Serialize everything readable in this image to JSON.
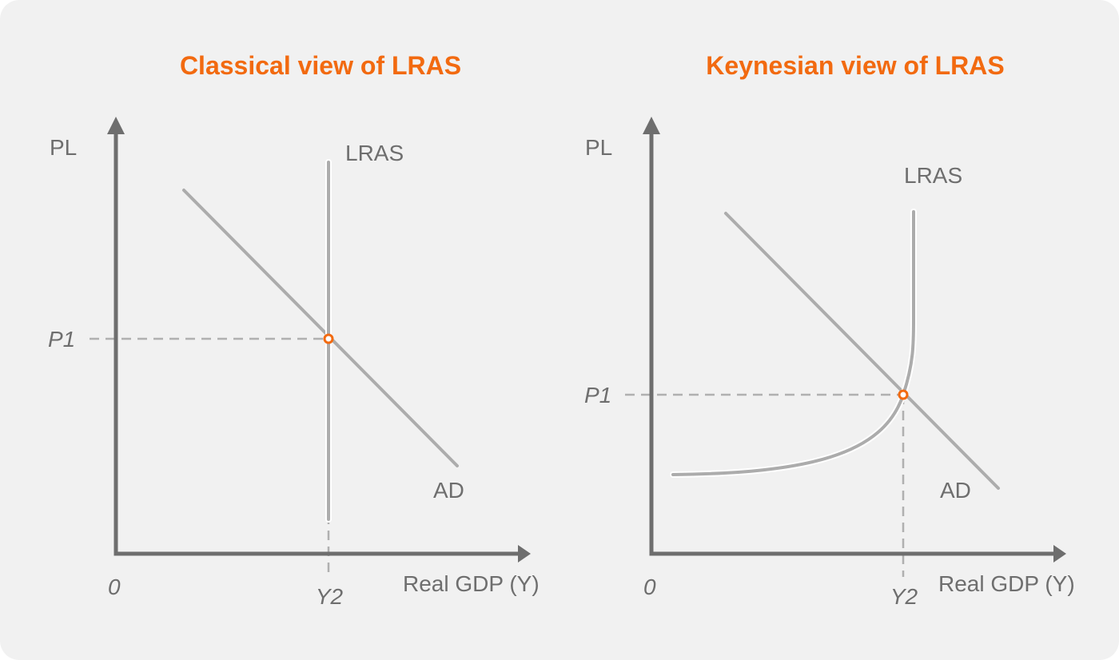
{
  "panels": [
    {
      "title": "Classical view of LRAS",
      "y_label": "PL",
      "x_label": "Real GDP (Y)",
      "origin": "0",
      "lras": "LRAS",
      "ad": "AD",
      "p1": "P1",
      "y2": "Y2"
    },
    {
      "title": "Keynesian view of LRAS",
      "y_label": "PL",
      "x_label": "Real GDP (Y)",
      "origin": "0",
      "lras": "LRAS",
      "ad": "AD",
      "p1": "P1",
      "y2": "Y2"
    }
  ]
}
